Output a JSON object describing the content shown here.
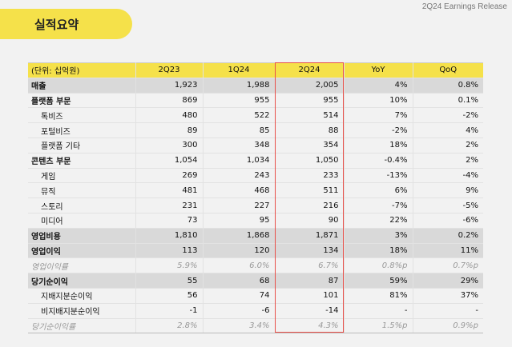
{
  "header": {
    "release": "2Q24 Earnings Release",
    "title": "실적요약"
  },
  "table": {
    "columns": [
      "(단위: 십억원)",
      "2Q23",
      "1Q24",
      "2Q24",
      "YoY",
      "QoQ"
    ],
    "rows": [
      {
        "style": "gray",
        "cells": [
          "매출",
          "1,923",
          "1,988",
          "2,005",
          "4%",
          "0.8%"
        ]
      },
      {
        "style": "sec",
        "cells": [
          "플랫폼 부문",
          "869",
          "955",
          "955",
          "10%",
          "0.1%"
        ]
      },
      {
        "style": "sub",
        "cells": [
          "톡비즈",
          "480",
          "522",
          "514",
          "7%",
          "-2%"
        ]
      },
      {
        "style": "sub",
        "cells": [
          "포털비즈",
          "89",
          "85",
          "88",
          "-2%",
          "4%"
        ]
      },
      {
        "style": "sub",
        "cells": [
          "플랫폼 기타",
          "300",
          "348",
          "354",
          "18%",
          "2%"
        ]
      },
      {
        "style": "sec",
        "cells": [
          "콘텐츠 부문",
          "1,054",
          "1,034",
          "1,050",
          "-0.4%",
          "2%"
        ]
      },
      {
        "style": "sub",
        "cells": [
          "게임",
          "269",
          "243",
          "233",
          "-13%",
          "-4%"
        ]
      },
      {
        "style": "sub",
        "cells": [
          "뮤직",
          "481",
          "468",
          "511",
          "6%",
          "9%"
        ]
      },
      {
        "style": "sub",
        "cells": [
          "스토리",
          "231",
          "227",
          "216",
          "-7%",
          "-5%"
        ]
      },
      {
        "style": "sub",
        "cells": [
          "미디어",
          "73",
          "95",
          "90",
          "22%",
          "-6%"
        ]
      },
      {
        "style": "gray",
        "cells": [
          "영업비용",
          "1,810",
          "1,868",
          "1,871",
          "3%",
          "0.2%"
        ]
      },
      {
        "style": "gray",
        "cells": [
          "영업이익",
          "113",
          "120",
          "134",
          "18%",
          "11%"
        ]
      },
      {
        "style": "ital",
        "cells": [
          "영업이익률",
          "5.9%",
          "6.0%",
          "6.7%",
          "0.8%p",
          "0.7%p"
        ]
      },
      {
        "style": "gray",
        "cells": [
          "당기순이익",
          "55",
          "68",
          "87",
          "59%",
          "29%"
        ]
      },
      {
        "style": "sub",
        "cells": [
          "지배지분순이익",
          "56",
          "74",
          "101",
          "81%",
          "37%"
        ]
      },
      {
        "style": "sub",
        "cells": [
          "비지배지분순이익",
          "-1",
          "-6",
          "-14",
          "-",
          "-"
        ]
      },
      {
        "style": "ital",
        "cells": [
          "당기순이익률",
          "2.8%",
          "3.4%",
          "4.3%",
          "1.5%p",
          "0.9%p"
        ]
      }
    ],
    "highlight_column": "2Q24",
    "colors": {
      "accent": "#f5e14a",
      "highlight_border": "#e8504a",
      "row_gray": "#d9d9d9"
    }
  }
}
